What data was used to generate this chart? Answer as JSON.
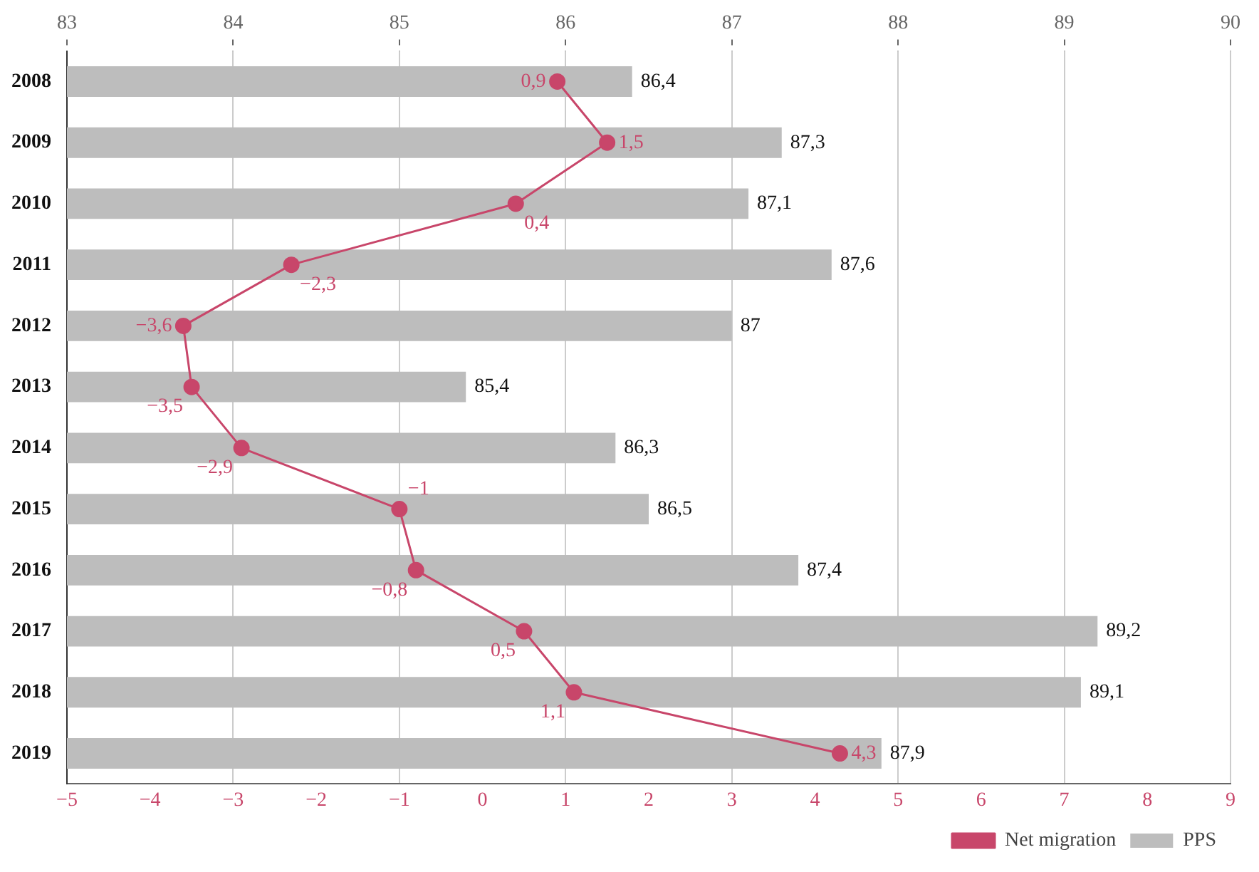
{
  "chart_data": {
    "type": "bar",
    "orientation": "horizontal",
    "categories": [
      "2008",
      "2009",
      "2010",
      "2011",
      "2012",
      "2013",
      "2014",
      "2015",
      "2016",
      "2017",
      "2018",
      "2019"
    ],
    "series": [
      {
        "name": "Net migration",
        "type": "line",
        "color": "#c8466a",
        "values": [
          0.9,
          1.5,
          0.4,
          -2.3,
          -3.6,
          -3.5,
          -2.9,
          -1,
          -0.8,
          0.5,
          1.1,
          4.3
        ],
        "value_labels": [
          "0,9",
          "1,5",
          "0,4",
          "−2,3",
          "−3,6",
          "−3,5",
          "−2,9",
          "−1",
          "−0,8",
          "0,5",
          "1,1",
          "4,3"
        ]
      },
      {
        "name": "PPS",
        "axis": "x2",
        "color": "#bdbdbd",
        "values": [
          86.4,
          87.3,
          87.1,
          87.6,
          87,
          85.4,
          86.3,
          86.5,
          87.4,
          89.2,
          89.1,
          87.9
        ],
        "value_labels": [
          "86,4",
          "87,3",
          "87,1",
          "87,6",
          "87",
          "85,4",
          "86,3",
          "86,5",
          "87,4",
          "89,2",
          "89,1",
          "87,9"
        ]
      }
    ],
    "xlim": [
      -5,
      9
    ],
    "xticks": [
      {
        "value": -5,
        "label": "−5"
      },
      {
        "value": -4,
        "label": "−4"
      },
      {
        "value": -3,
        "label": "−3"
      },
      {
        "value": -2,
        "label": "−2"
      },
      {
        "value": -1,
        "label": "−1"
      },
      0,
      1,
      2,
      3,
      4,
      5,
      6,
      7,
      8,
      9
    ],
    "x2lim": [
      83,
      90
    ],
    "x2ticks": [
      83,
      84,
      85,
      86,
      87,
      88,
      89,
      90
    ],
    "grid": "x",
    "legend": "bottom right",
    "marker": "circle"
  }
}
